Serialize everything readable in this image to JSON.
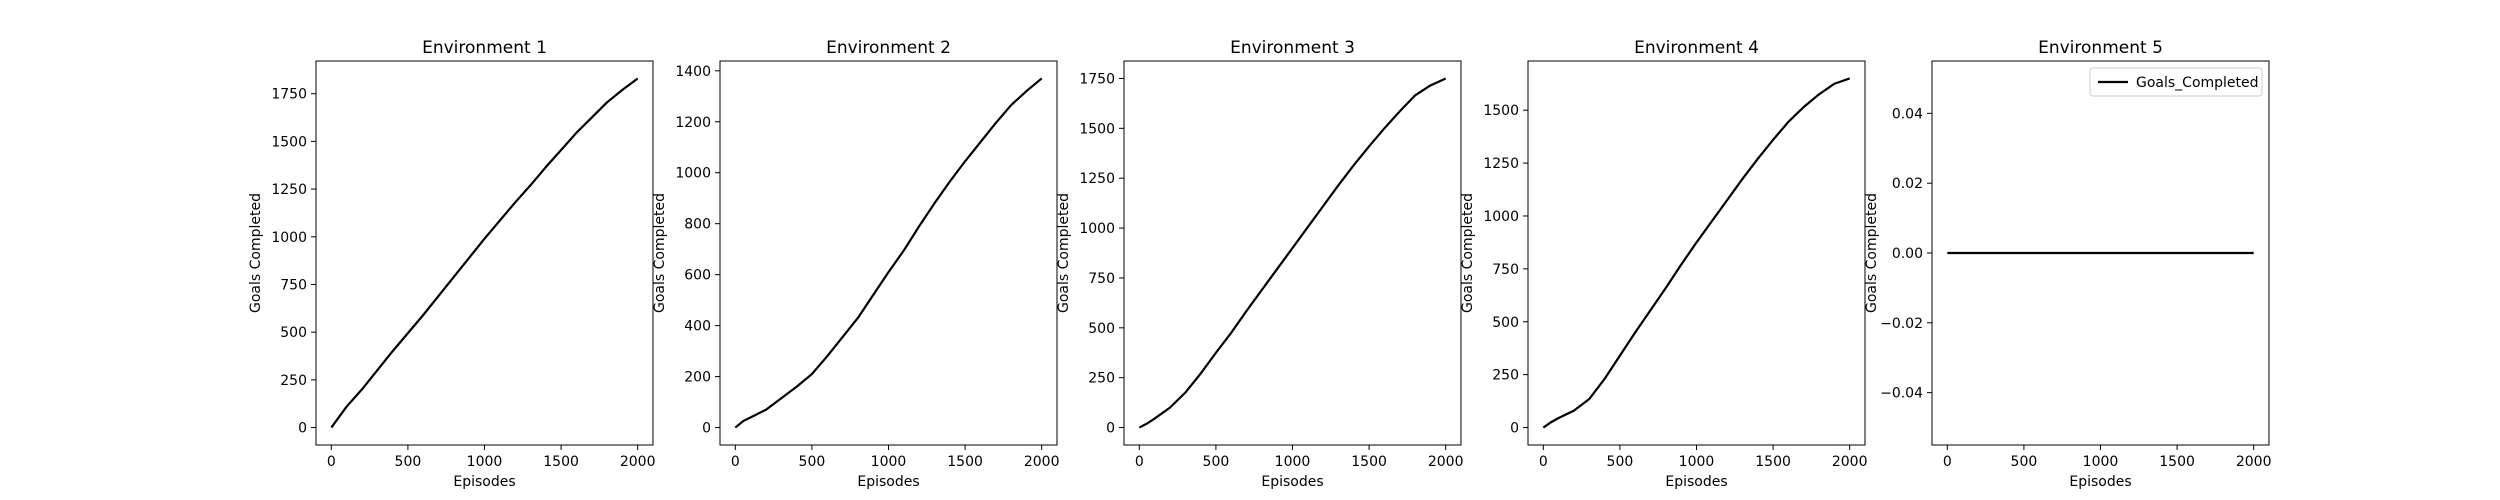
{
  "chart_data": [
    {
      "type": "line",
      "title": "Environment 1",
      "xlabel": "Episodes",
      "ylabel": "Goals Completed",
      "xlim": [
        -100,
        2100
      ],
      "ylim": [
        -91.5,
        1921.5
      ],
      "xticks": [
        0,
        500,
        1000,
        1500,
        2000
      ],
      "yticks": [
        0,
        250,
        500,
        750,
        1000,
        1250,
        1500,
        1750
      ],
      "grid": false,
      "legend": null,
      "series": [
        {
          "color": "#000000",
          "x": [
            0,
            50,
            100,
            200,
            300,
            400,
            500,
            600,
            700,
            800,
            900,
            1000,
            1100,
            1200,
            1300,
            1400,
            1500,
            1600,
            1700,
            1800,
            1900,
            2000
          ],
          "y": [
            0,
            55,
            110,
            200,
            300,
            400,
            495,
            590,
            690,
            790,
            890,
            990,
            1085,
            1180,
            1270,
            1365,
            1455,
            1545,
            1625,
            1705,
            1770,
            1830
          ]
        }
      ]
    },
    {
      "type": "line",
      "title": "Environment 2",
      "xlabel": "Episodes",
      "ylabel": "Goals Completed",
      "xlim": [
        -100,
        2100
      ],
      "ylim": [
        -68.5,
        1438.5
      ],
      "xticks": [
        0,
        500,
        1000,
        1500,
        2000
      ],
      "yticks": [
        0,
        200,
        400,
        600,
        800,
        1000,
        1200,
        1400
      ],
      "grid": false,
      "legend": null,
      "series": [
        {
          "color": "#000000",
          "x": [
            0,
            50,
            100,
            200,
            300,
            400,
            500,
            600,
            700,
            800,
            900,
            1000,
            1100,
            1200,
            1300,
            1400,
            1500,
            1600,
            1700,
            1800,
            1900,
            2000
          ],
          "y": [
            0,
            25,
            40,
            70,
            115,
            160,
            210,
            280,
            355,
            430,
            520,
            610,
            695,
            790,
            880,
            965,
            1045,
            1120,
            1195,
            1265,
            1320,
            1370
          ]
        }
      ]
    },
    {
      "type": "line",
      "title": "Environment 3",
      "xlabel": "Episodes",
      "ylabel": "Goals Completed",
      "xlim": [
        -100,
        2100
      ],
      "ylim": [
        -87.5,
        1837.5
      ],
      "xticks": [
        0,
        500,
        1000,
        1500,
        2000
      ],
      "yticks": [
        0,
        250,
        500,
        750,
        1000,
        1250,
        1500,
        1750
      ],
      "grid": false,
      "legend": null,
      "series": [
        {
          "color": "#000000",
          "x": [
            0,
            50,
            100,
            200,
            300,
            400,
            500,
            600,
            700,
            800,
            900,
            1000,
            1100,
            1200,
            1300,
            1400,
            1500,
            1600,
            1700,
            1800,
            1900,
            2000
          ],
          "y": [
            0,
            20,
            45,
            100,
            175,
            270,
            375,
            475,
            585,
            690,
            795,
            900,
            1005,
            1110,
            1215,
            1315,
            1410,
            1500,
            1585,
            1665,
            1715,
            1750
          ]
        }
      ]
    },
    {
      "type": "line",
      "title": "Environment 4",
      "xlabel": "Episodes",
      "ylabel": "Goals Completed",
      "xlim": [
        -100,
        2100
      ],
      "ylim": [
        -82.5,
        1732.5
      ],
      "xticks": [
        0,
        500,
        1000,
        1500,
        2000
      ],
      "yticks": [
        0,
        250,
        500,
        750,
        1000,
        1250,
        1500
      ],
      "grid": false,
      "legend": null,
      "series": [
        {
          "color": "#000000",
          "x": [
            0,
            50,
            100,
            200,
            300,
            400,
            500,
            600,
            700,
            800,
            900,
            1000,
            1100,
            1200,
            1300,
            1400,
            1500,
            1600,
            1700,
            1800,
            1900,
            2000
          ],
          "y": [
            0,
            25,
            45,
            80,
            135,
            230,
            340,
            450,
            555,
            660,
            770,
            875,
            975,
            1075,
            1175,
            1270,
            1360,
            1445,
            1515,
            1575,
            1625,
            1650
          ]
        }
      ]
    },
    {
      "type": "line",
      "title": "Environment 5",
      "xlabel": "Episodes",
      "ylabel": "Goals Completed",
      "xlim": [
        -100,
        2100
      ],
      "ylim": [
        -0.055,
        0.055
      ],
      "xticks": [
        0,
        500,
        1000,
        1500,
        2000
      ],
      "yticks": [
        -0.04,
        -0.02,
        0.0,
        0.02,
        0.04
      ],
      "ytick_labels": [
        "−0.04",
        "−0.02",
        "0.00",
        "0.02",
        "0.04"
      ],
      "grid": false,
      "legend": "top-right",
      "series": [
        {
          "name": "Goals_Completed",
          "color": "#000000",
          "x": [
            0,
            500,
            1000,
            1500,
            2000
          ],
          "y": [
            0,
            0,
            0,
            0,
            0
          ]
        }
      ]
    }
  ]
}
